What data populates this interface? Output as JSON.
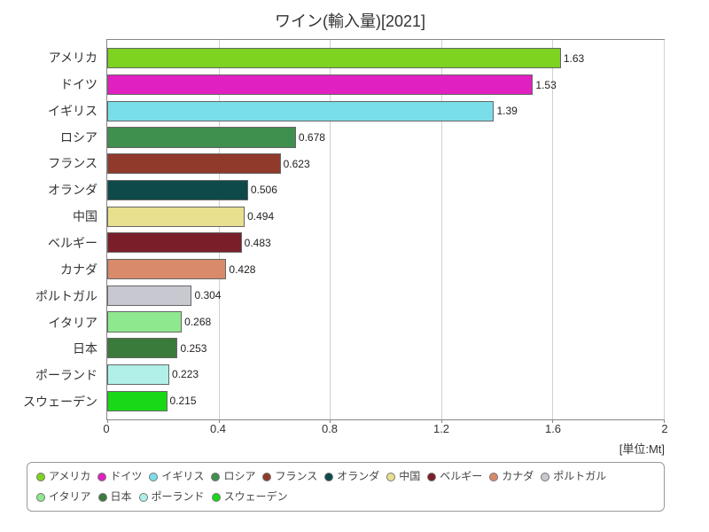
{
  "chart": {
    "type": "bar-horizontal",
    "title": "ワイン(輸入量)[2021]",
    "title_fontsize": 18,
    "unit_label": "[単位:Mt]",
    "background_color": "#ffffff",
    "grid_color": "#d0d0d0",
    "border_color": "#888888",
    "text_color": "#333333",
    "xlim": [
      0,
      2
    ],
    "xtick_step": 0.4,
    "xticks": [
      "0",
      "0.4",
      "0.8",
      "1.2",
      "1.6",
      "2"
    ],
    "bar_border_color": "#666666",
    "value_label_fontsize": 12,
    "y_label_fontsize": 14,
    "countries": [
      {
        "name": "アメリカ",
        "value": 1.63,
        "label": "1.63",
        "color": "#7ed321"
      },
      {
        "name": "ドイツ",
        "value": 1.53,
        "label": "1.53",
        "color": "#e020c0"
      },
      {
        "name": "イギリス",
        "value": 1.39,
        "label": "1.39",
        "color": "#7adee8"
      },
      {
        "name": "ロシア",
        "value": 0.678,
        "label": "0.678",
        "color": "#3f8f4f"
      },
      {
        "name": "フランス",
        "value": 0.623,
        "label": "0.623",
        "color": "#8f3a2a"
      },
      {
        "name": "オランダ",
        "value": 0.506,
        "label": "0.506",
        "color": "#0e4a4a"
      },
      {
        "name": "中国",
        "value": 0.494,
        "label": "0.494",
        "color": "#e8e08f"
      },
      {
        "name": "ベルギー",
        "value": 0.483,
        "label": "0.483",
        "color": "#7a1f2a"
      },
      {
        "name": "カナダ",
        "value": 0.428,
        "label": "0.428",
        "color": "#d88a6a"
      },
      {
        "name": "ポルトガル",
        "value": 0.304,
        "label": "0.304",
        "color": "#c8c8d0"
      },
      {
        "name": "イタリア",
        "value": 0.268,
        "label": "0.268",
        "color": "#8ee88e"
      },
      {
        "name": "日本",
        "value": 0.253,
        "label": "0.253",
        "color": "#3a7a3a"
      },
      {
        "name": "ポーランド",
        "value": 0.223,
        "label": "0.223",
        "color": "#b0f0e8"
      },
      {
        "name": "スウェーデン",
        "value": 0.215,
        "label": "0.215",
        "color": "#18d818"
      }
    ]
  }
}
